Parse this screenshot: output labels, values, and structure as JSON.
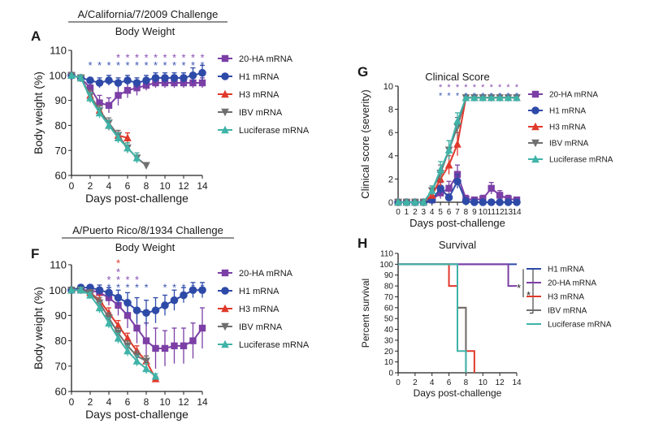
{
  "colors": {
    "20-HA mRNA": "#7b3fa6",
    "H1 mRNA": "#2e4aa8",
    "H3 mRNA": "#e0392b",
    "IBV mRNA": "#6f6f6f",
    "Luciferase mRNA": "#3fb3a8",
    "star_purple": "#8a4fb3",
    "star_blue": "#3a56b0",
    "star_red": "#e0392b"
  },
  "chart_data": [
    {
      "id": "A",
      "panel_label": "A",
      "type": "line",
      "header": "A/California/7/2009 Challenge",
      "title": "Body Weight",
      "xlabel": "Days post-challenge",
      "ylabel": "Body weight (%)",
      "xlim": [
        0,
        14
      ],
      "ylim": [
        60,
        110
      ],
      "xticks": [
        "0",
        "2",
        "4",
        "6",
        "8",
        "10",
        "12",
        "14"
      ],
      "yticks": [
        "60",
        "70",
        "80",
        "90",
        "100",
        "110"
      ],
      "legend": [
        "20-HA mRNA",
        "H1 mRNA",
        "H3 mRNA",
        "IBV mRNA",
        "Luciferase mRNA"
      ],
      "series": [
        {
          "name": "20-HA mRNA",
          "marker": "square",
          "x": [
            0,
            1,
            2,
            3,
            4,
            5,
            6,
            7,
            8,
            9,
            10,
            11,
            12,
            13,
            14
          ],
          "y": [
            100,
            99,
            95,
            89,
            88,
            92,
            94,
            95,
            96,
            97,
            97,
            97,
            97,
            97,
            97
          ],
          "err": [
            0,
            1,
            2,
            3,
            3,
            4,
            3,
            3,
            2,
            2,
            2,
            2,
            2,
            2,
            2
          ]
        },
        {
          "name": "H1 mRNA",
          "marker": "circle",
          "x": [
            0,
            1,
            2,
            3,
            4,
            5,
            6,
            7,
            8,
            9,
            10,
            11,
            12,
            13,
            14
          ],
          "y": [
            100,
            99,
            98,
            97,
            98,
            97,
            98,
            97,
            98,
            99,
            99,
            99,
            99,
            100,
            101
          ],
          "err": [
            0,
            1,
            1,
            2,
            2,
            2,
            2,
            2,
            2,
            2,
            2,
            2,
            2,
            3,
            3
          ]
        },
        {
          "name": "H3 mRNA",
          "marker": "triangle",
          "x": [
            0,
            1,
            2,
            3,
            4,
            5,
            6
          ],
          "y": [
            100,
            99,
            92,
            86,
            80,
            76,
            75
          ],
          "err": [
            0,
            1,
            2,
            2,
            2,
            2,
            2
          ]
        },
        {
          "name": "IBV mRNA",
          "marker": "triangle-down",
          "x": [
            0,
            1,
            2,
            3,
            4,
            5,
            6,
            7,
            8
          ],
          "y": [
            100,
            99,
            92,
            86,
            81,
            76,
            71,
            67,
            64
          ],
          "err": [
            0,
            1,
            2,
            2,
            2,
            2,
            2,
            2,
            1
          ]
        },
        {
          "name": "Luciferase mRNA",
          "marker": "triangle",
          "x": [
            0,
            1,
            2,
            3,
            4,
            5,
            6,
            7
          ],
          "y": [
            100,
            99,
            91,
            85,
            80,
            75,
            71,
            67
          ],
          "err": [
            0,
            1,
            2,
            2,
            2,
            2,
            2,
            2
          ]
        }
      ],
      "star_rows": [
        {
          "color": "purple",
          "x": [
            5,
            6,
            7,
            8,
            9,
            10,
            11,
            12,
            13,
            14
          ],
          "y": 107.5
        },
        {
          "color": "blue",
          "x": [
            2,
            3,
            4,
            5,
            6,
            7,
            8,
            9,
            10,
            11,
            12,
            13,
            14
          ],
          "y": 104.5
        }
      ]
    },
    {
      "id": "F",
      "panel_label": "F",
      "type": "line",
      "header": "A/Puerto Rico/8/1934 Challenge",
      "title": "Body Weight",
      "xlabel": "Days post-challenge",
      "ylabel": "Body weight (%)",
      "xlim": [
        0,
        14
      ],
      "ylim": [
        60,
        110
      ],
      "xticks": [
        "0",
        "2",
        "4",
        "6",
        "8",
        "10",
        "12",
        "14"
      ],
      "yticks": [
        "60",
        "70",
        "80",
        "90",
        "100",
        "110"
      ],
      "legend": [
        "20-HA mRNA",
        "H1 mRNA",
        "H3 mRNA",
        "IBV mRNA",
        "Luciferase mRNA"
      ],
      "series": [
        {
          "name": "20-HA mRNA",
          "marker": "square",
          "x": [
            0,
            1,
            2,
            3,
            4,
            5,
            6,
            7,
            8,
            9,
            10,
            11,
            12,
            13,
            14
          ],
          "y": [
            100,
            100,
            100,
            99,
            97,
            94,
            90,
            85,
            80,
            77,
            77,
            78,
            78,
            80,
            85
          ],
          "err": [
            0,
            1,
            1,
            2,
            3,
            4,
            5,
            6,
            7,
            8,
            7,
            7,
            7,
            7,
            8
          ]
        },
        {
          "name": "H1 mRNA",
          "marker": "circle",
          "x": [
            0,
            1,
            2,
            3,
            4,
            5,
            6,
            7,
            8,
            9,
            10,
            11,
            12,
            13,
            14
          ],
          "y": [
            100,
            101,
            101,
            100,
            99,
            97,
            95,
            92,
            91,
            92,
            94,
            96,
            98,
            100,
            100
          ],
          "err": [
            0,
            1,
            1,
            2,
            2,
            3,
            4,
            5,
            5,
            5,
            4,
            4,
            3,
            3,
            3
          ]
        },
        {
          "name": "H3 mRNA",
          "marker": "triangle",
          "x": [
            0,
            1,
            2,
            3,
            4,
            5,
            6,
            7,
            8,
            9
          ],
          "y": [
            100,
            100,
            99,
            96,
            91,
            86,
            81,
            76,
            72,
            65
          ],
          "err": [
            0,
            1,
            1,
            2,
            2,
            2,
            2,
            2,
            2,
            1
          ]
        },
        {
          "name": "IBV mRNA",
          "marker": "triangle-down",
          "x": [
            0,
            1,
            2,
            3,
            4,
            5,
            6,
            7,
            8
          ],
          "y": [
            100,
            100,
            99,
            95,
            89,
            83,
            78,
            74,
            72
          ],
          "err": [
            0,
            1,
            1,
            2,
            2,
            2,
            2,
            2,
            2
          ]
        },
        {
          "name": "Luciferase mRNA",
          "marker": "triangle",
          "x": [
            0,
            1,
            2,
            3,
            4,
            5,
            6,
            7,
            8,
            9
          ],
          "y": [
            100,
            100,
            98,
            93,
            87,
            81,
            76,
            72,
            69,
            66
          ],
          "err": [
            0,
            1,
            1,
            2,
            2,
            2,
            2,
            2,
            2,
            1
          ]
        }
      ],
      "star_rows": [
        {
          "color": "red",
          "x": [
            5
          ],
          "y": 111
        },
        {
          "color": "purple",
          "x": [
            5
          ],
          "y": 107.5
        },
        {
          "color": "purple",
          "x": [
            4,
            5,
            6,
            7
          ],
          "y": 104.5
        },
        {
          "color": "blue",
          "x": [
            4,
            5,
            6,
            7,
            8,
            10,
            11,
            12,
            13,
            14
          ],
          "y": 101.5
        }
      ]
    },
    {
      "id": "G",
      "panel_label": "G",
      "type": "line",
      "title": "Clinical Score",
      "xlabel": "Days post-challenge",
      "ylabel": "Clinical score (severity)",
      "xlim": [
        0,
        14
      ],
      "ylim": [
        0,
        10
      ],
      "xticks": [
        "0",
        "1",
        "2",
        "3",
        "4",
        "5",
        "6",
        "7",
        "8",
        "9",
        "10",
        "11",
        "12",
        "13",
        "14"
      ],
      "yticks": [
        "0",
        "2",
        "4",
        "6",
        "8",
        "10"
      ],
      "legend": [
        "20-HA mRNA",
        "H1 mRNA",
        "H3 mRNA",
        "IBV mRNA",
        "Luciferase mRNA"
      ],
      "series": [
        {
          "name": "20-HA mRNA",
          "marker": "square",
          "x": [
            0,
            1,
            2,
            3,
            4,
            5,
            6,
            7,
            8,
            9,
            10,
            11,
            12,
            13,
            14
          ],
          "y": [
            0,
            0,
            0,
            0,
            0.2,
            0.8,
            1.2,
            2.4,
            0.3,
            0.2,
            0.3,
            1.2,
            0.6,
            0.3,
            0.2
          ],
          "err": [
            0,
            0,
            0,
            0,
            0.2,
            0.5,
            0.6,
            0.8,
            0.3,
            0.2,
            0.3,
            0.5,
            0.4,
            0.3,
            0.2
          ]
        },
        {
          "name": "H1 mRNA",
          "marker": "circle",
          "x": [
            0,
            1,
            2,
            3,
            4,
            5,
            6,
            7,
            8,
            9,
            10,
            11,
            12,
            13,
            14
          ],
          "y": [
            0,
            0,
            0,
            0,
            0.2,
            1.2,
            0.4,
            1.8,
            0.1,
            0,
            0,
            0,
            0,
            0,
            0
          ],
          "err": [
            0,
            0,
            0,
            0,
            0.2,
            0.5,
            0.3,
            0.6,
            0.1,
            0,
            0,
            0,
            0,
            0,
            0
          ]
        },
        {
          "name": "H3 mRNA",
          "marker": "triangle",
          "x": [
            0,
            1,
            2,
            3,
            4,
            5,
            6,
            7,
            8,
            9,
            10,
            11,
            12,
            13,
            14
          ],
          "y": [
            0,
            0,
            0,
            0,
            0.6,
            2,
            3.2,
            5,
            9,
            9,
            9,
            9,
            9,
            9,
            9
          ],
          "err": [
            0,
            0,
            0,
            0,
            0.3,
            0.6,
            0.8,
            1,
            0,
            0,
            0,
            0,
            0,
            0,
            0
          ]
        },
        {
          "name": "IBV mRNA",
          "marker": "triangle-down",
          "x": [
            0,
            1,
            2,
            3,
            4,
            5,
            6,
            7,
            8,
            9,
            10,
            11,
            12,
            13,
            14
          ],
          "y": [
            0,
            0,
            0,
            0,
            1,
            2.5,
            4.5,
            6.5,
            9,
            9,
            9,
            9,
            9,
            9,
            9
          ],
          "err": [
            0,
            0,
            0,
            0,
            0.4,
            0.7,
            0.8,
            0.8,
            0,
            0,
            0,
            0,
            0,
            0,
            0
          ]
        },
        {
          "name": "Luciferase mRNA",
          "marker": "triangle",
          "x": [
            0,
            1,
            2,
            3,
            4,
            5,
            6,
            7,
            8,
            9,
            10,
            11,
            12,
            13,
            14
          ],
          "y": [
            0,
            0,
            0,
            0,
            1,
            2.8,
            4.5,
            7,
            9,
            9,
            9,
            9,
            9,
            9,
            9
          ],
          "err": [
            0,
            0,
            0,
            0,
            0.4,
            0.7,
            0.8,
            0.7,
            0,
            0,
            0,
            0,
            0,
            0,
            0
          ]
        }
      ],
      "star_rows": [
        {
          "color": "purple",
          "x": [
            5,
            6,
            7,
            8,
            9,
            10,
            11,
            12,
            13,
            14
          ],
          "y": 10
        },
        {
          "color": "blue",
          "x": [
            5,
            6,
            7,
            8,
            9,
            10,
            11,
            12,
            13,
            14
          ],
          "y": 9.25
        }
      ]
    },
    {
      "id": "H",
      "panel_label": "H",
      "type": "line",
      "step": true,
      "title": "Survival",
      "xlabel": "Days post-challenge",
      "ylabel": "Percent survival",
      "xlim": [
        0,
        14
      ],
      "ylim": [
        0,
        110
      ],
      "xticks": [
        "0",
        "2",
        "4",
        "6",
        "8",
        "10",
        "12",
        "14"
      ],
      "yticks": [
        "0",
        "10",
        "20",
        "30",
        "40",
        "50",
        "60",
        "70",
        "80",
        "90",
        "100",
        "110"
      ],
      "legend": [
        "H1 mRNA",
        "20-HA mRNA",
        "H3 mRNA",
        "IBV mRNA",
        "Luciferase mRNA"
      ],
      "series": [
        {
          "name": "H1 mRNA",
          "x": [
            0,
            14
          ],
          "y": [
            100,
            100
          ]
        },
        {
          "name": "20-HA mRNA",
          "x": [
            0,
            13,
            13,
            14
          ],
          "y": [
            100,
            100,
            80,
            80
          ]
        },
        {
          "name": "H3 mRNA",
          "x": [
            0,
            6,
            6,
            7,
            7,
            8,
            8,
            9,
            9
          ],
          "y": [
            100,
            100,
            80,
            80,
            60,
            60,
            20,
            20,
            0
          ]
        },
        {
          "name": "IBV mRNA",
          "x": [
            0,
            7,
            7,
            8,
            8
          ],
          "y": [
            100,
            100,
            60,
            60,
            0
          ]
        },
        {
          "name": "Luciferase mRNA",
          "x": [
            0,
            7,
            7,
            8,
            8
          ],
          "y": [
            100,
            100,
            20,
            20,
            0
          ]
        }
      ],
      "significance": [
        "*",
        "*"
      ]
    }
  ]
}
